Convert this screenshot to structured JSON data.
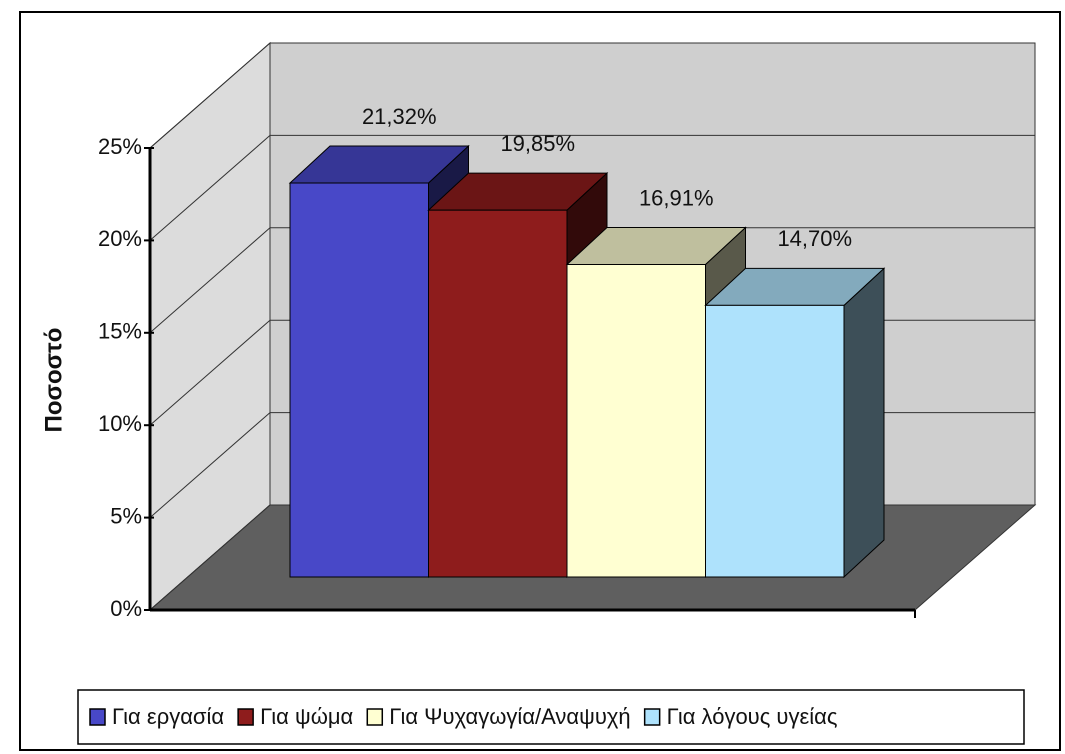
{
  "chart_data": {
    "type": "bar3d",
    "y_label": "Ποσοστό",
    "categories": [
      null
    ],
    "series": [
      {
        "name": "Για εργασία",
        "color": "#4848c8",
        "values": [
          21.32
        ],
        "value_labels": [
          "21,32%"
        ]
      },
      {
        "name": "Για ψώμα",
        "color": "#8e1c1c",
        "values": [
          19.85
        ],
        "value_labels": [
          "19,85%"
        ]
      },
      {
        "name": "Για Ψυχαγωγία/Αναψυχή",
        "color": "#ffffd2",
        "values": [
          16.91
        ],
        "value_labels": [
          "16,91%"
        ]
      },
      {
        "name": "Για λόγους υγείας",
        "color": "#aee2fc",
        "values": [
          14.7
        ],
        "value_labels": [
          "14,70%"
        ]
      }
    ],
    "ylim": [
      0,
      25
    ],
    "yticks": [
      {
        "value": 0,
        "label": "0%"
      },
      {
        "value": 5,
        "label": "5%"
      },
      {
        "value": 10,
        "label": "10%"
      },
      {
        "value": 15,
        "label": "15%"
      },
      {
        "value": 20,
        "label": "20%"
      },
      {
        "value": 25,
        "label": "25%"
      }
    ],
    "grid": true,
    "legend": "bottom"
  }
}
